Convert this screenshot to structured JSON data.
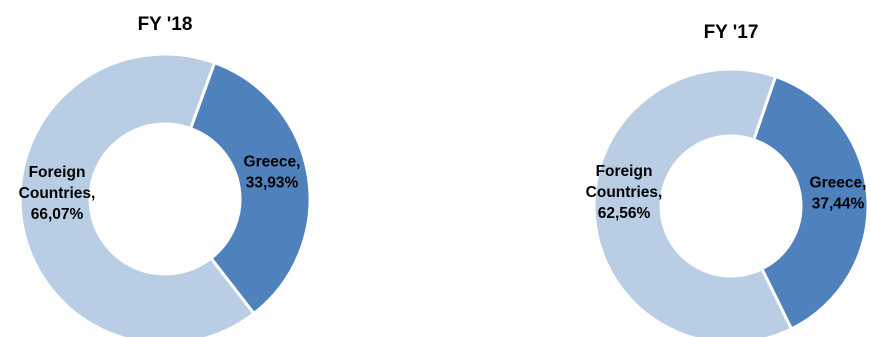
{
  "chart_data": [
    {
      "type": "pie",
      "title": "FY '18",
      "categories": [
        "Greece",
        "Foreign Countries"
      ],
      "values": [
        33.93,
        66.07
      ],
      "labels": [
        [
          "Greece,",
          "33,93%"
        ],
        [
          "Foreign",
          "Countries,",
          "66,07%"
        ]
      ],
      "colors": [
        "#4F81BD",
        "#B9CDE5"
      ],
      "legend": "none"
    },
    {
      "type": "pie",
      "title": "FY '17",
      "categories": [
        "Greece",
        "Foreign Countries"
      ],
      "values": [
        37.44,
        62.56
      ],
      "labels": [
        [
          "Greece,",
          "37,44%"
        ],
        [
          "Foreign",
          "Countries,",
          "62,56%"
        ]
      ],
      "colors": [
        "#4F81BD",
        "#B9CDE5"
      ],
      "legend": "none"
    }
  ]
}
